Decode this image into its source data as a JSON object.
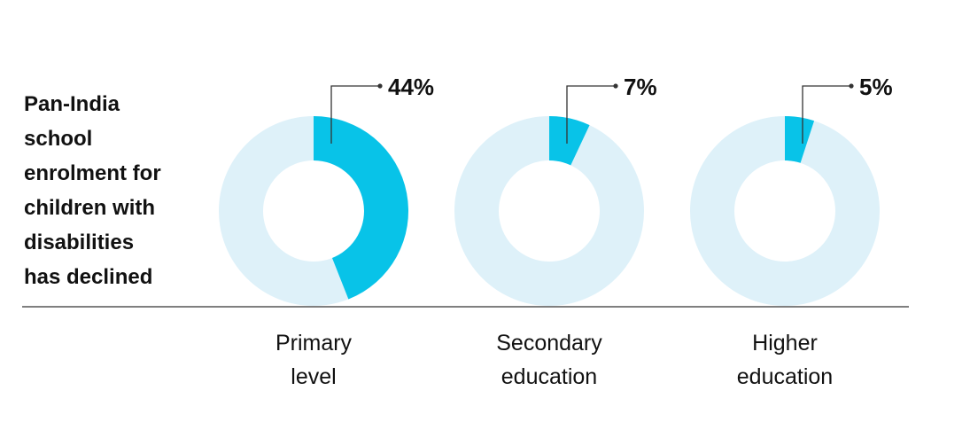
{
  "title_lines": [
    "Pan-India",
    "school",
    "enrolment for",
    "children with",
    "disabilities",
    "has declined"
  ],
  "chart_data": {
    "type": "pie",
    "subtype": "donut",
    "categories": [
      {
        "label_lines": [
          "Primary",
          "level"
        ],
        "value": 44,
        "value_label": "44%"
      },
      {
        "label_lines": [
          "Secondary",
          "education"
        ],
        "value": 7,
        "value_label": "7%"
      },
      {
        "label_lines": [
          "Higher",
          "education"
        ],
        "value": 5,
        "value_label": "5%"
      }
    ],
    "colors": {
      "highlight": "#08c3e8",
      "remainder": "#def1f9",
      "rule": "#333333",
      "text": "#111111"
    }
  }
}
